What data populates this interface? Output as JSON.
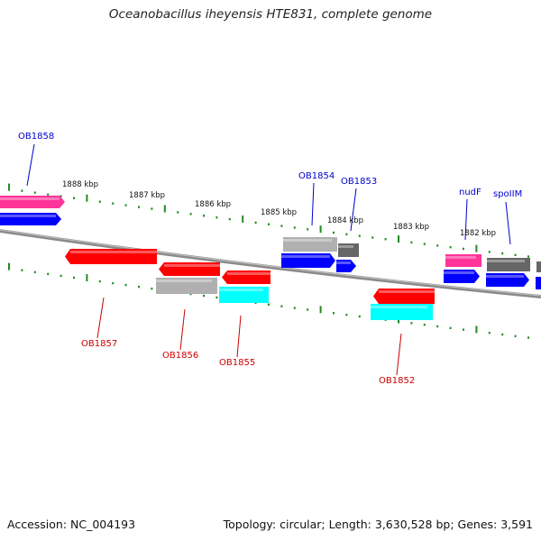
{
  "title": "Oceanobacillus iheyensis HTE831, complete genome",
  "footer": {
    "accession": "Accession: NC_004193",
    "topology": "Topology: circular; Length: 3,630,528 bp; Genes: 3,591"
  },
  "kbp_labels": [
    "1888 kbp",
    "1887 kbp",
    "1886 kbp",
    "1885 kbp",
    "1884 kbp",
    "1883 kbp",
    "1882 kbp"
  ],
  "gene_labels": {
    "forward": [
      "OB1858",
      "OB1854",
      "OB1853",
      "nudF",
      "spoIIM"
    ],
    "reverse": [
      "OB1857",
      "OB1856",
      "OB1855",
      "OB1852"
    ]
  },
  "colors": {
    "forward_label": "#0000cc",
    "reverse_label": "#cc0000",
    "tick": "#228b22",
    "backbone": "#808080",
    "cds_forward": "#0000ff",
    "cds_reverse": "#ff0000",
    "pink": "#ff3399",
    "grey": "#b0b0b0",
    "dark_grey": "#666666",
    "cyan": "#00ffff"
  }
}
